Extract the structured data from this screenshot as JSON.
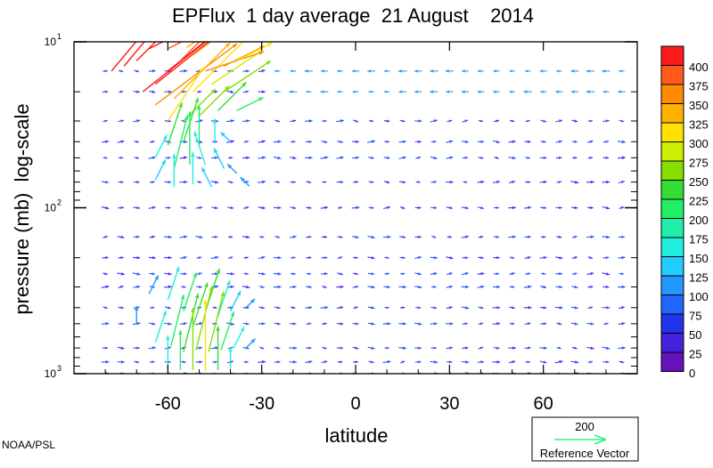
{
  "chart_data": {
    "type": "vector-field",
    "title": "EPFlux  1 day average  21 August    2014",
    "xlabel": "latitude",
    "ylabel": "pressure (mb)  log-scale",
    "x_ticks": [
      {
        "value": -60,
        "label": "-60"
      },
      {
        "value": -30,
        "label": "-30"
      },
      {
        "value": 0,
        "label": "0"
      },
      {
        "value": 30,
        "label": "30"
      },
      {
        "value": 60,
        "label": "60"
      }
    ],
    "y_ticks": [
      {
        "value": 10,
        "base": "10",
        "exp": "1"
      },
      {
        "value": 100,
        "base": "10",
        "exp": "2"
      },
      {
        "value": 1000,
        "base": "10",
        "exp": "3"
      }
    ],
    "xlim": [
      -90,
      90
    ],
    "ylim": [
      1000,
      10
    ],
    "y_scale": "log",
    "colorbar": {
      "labels": [
        "400",
        "375",
        "350",
        "325",
        "300",
        "275",
        "250",
        "225",
        "200",
        "175",
        "150",
        "125",
        "100",
        "75",
        "50",
        "25",
        "0"
      ],
      "colors": [
        "#ff1a1a",
        "#ff5a1a",
        "#ff8c00",
        "#ffb000",
        "#ffe000",
        "#ccee00",
        "#88dd00",
        "#33dd33",
        "#22ee66",
        "#22eeaa",
        "#22eedd",
        "#22ccff",
        "#2299ff",
        "#2266ff",
        "#2233ee",
        "#4422dd",
        "#6611bb"
      ]
    },
    "reference_vector": {
      "value": "200",
      "label": "Reference Vector"
    },
    "vectors": [
      {
        "lat": -78,
        "p": 15,
        "u": 5,
        "v": -6,
        "mag": 395
      },
      {
        "lat": -74,
        "p": 14,
        "u": 5,
        "v": -6,
        "mag": 400
      },
      {
        "lat": -70,
        "p": 13,
        "u": 5,
        "v": -5,
        "mag": 400
      },
      {
        "lat": -68,
        "p": 20,
        "u": 5,
        "v": -4,
        "mag": 400
      },
      {
        "lat": -64,
        "p": 18,
        "u": 5,
        "v": -4,
        "mag": 400
      },
      {
        "lat": -60,
        "p": 15,
        "u": 5,
        "v": -4,
        "mag": 400
      },
      {
        "lat": -56,
        "p": 13,
        "u": 4,
        "v": -4,
        "mag": 380
      },
      {
        "lat": -52,
        "p": 12,
        "u": 4,
        "v": -3,
        "mag": 360
      },
      {
        "lat": -66,
        "p": 11,
        "u": 4,
        "v": -2,
        "mag": 390
      },
      {
        "lat": -60,
        "p": 11,
        "u": 4,
        "v": -2,
        "mag": 370
      },
      {
        "lat": -54,
        "p": 10.8,
        "u": 3,
        "v": -2,
        "mag": 330
      },
      {
        "lat": -64,
        "p": 24,
        "u": 4,
        "v": -3,
        "mag": 360
      },
      {
        "lat": -58,
        "p": 22,
        "u": 3,
        "v": -3,
        "mag": 320
      },
      {
        "lat": -52,
        "p": 20,
        "u": 3,
        "v": -3,
        "mag": 300
      },
      {
        "lat": -46,
        "p": 18,
        "u": 3,
        "v": -2,
        "mag": 280
      },
      {
        "lat": -42,
        "p": 20,
        "u": 3,
        "v": -2,
        "mag": 250
      },
      {
        "lat": -48,
        "p": 15,
        "u": 3,
        "v": -1,
        "mag": 340
      },
      {
        "lat": -42,
        "p": 14,
        "u": 2,
        "v": -1,
        "mag": 350
      },
      {
        "lat": -38,
        "p": 13,
        "u": 2,
        "v": -1,
        "mag": 300
      },
      {
        "lat": -60,
        "p": 30,
        "u": 2,
        "v": -3,
        "mag": 300
      },
      {
        "lat": -55,
        "p": 30,
        "u": 2,
        "v": -2,
        "mag": 260
      },
      {
        "lat": -50,
        "p": 28,
        "u": 2,
        "v": -2,
        "mag": 240
      },
      {
        "lat": -44,
        "p": 26,
        "u": 2,
        "v": -2,
        "mag": 220
      },
      {
        "lat": -38,
        "p": 26,
        "u": 2,
        "v": -1,
        "mag": 200
      },
      {
        "lat": -60,
        "p": 42,
        "u": 1,
        "v": -3,
        "mag": 220
      },
      {
        "lat": -55,
        "p": 40,
        "u": 1,
        "v": -3,
        "mag": 230
      },
      {
        "lat": -50,
        "p": 42,
        "u": 0,
        "v": -3,
        "mag": 200
      },
      {
        "lat": -45,
        "p": 40,
        "u": 0,
        "v": -2,
        "mag": 160
      },
      {
        "lat": -40,
        "p": 40,
        "u": -1,
        "v": -1,
        "mag": 120
      },
      {
        "lat": -64,
        "p": 50,
        "u": 1,
        "v": -2,
        "mag": 160
      },
      {
        "lat": -58,
        "p": 58,
        "u": 1,
        "v": -4,
        "mag": 200
      },
      {
        "lat": -53,
        "p": 55,
        "u": 0,
        "v": -4,
        "mag": 200
      },
      {
        "lat": -48,
        "p": 55,
        "u": -1,
        "v": -3,
        "mag": 150
      },
      {
        "lat": -42,
        "p": 58,
        "u": -1,
        "v": -2,
        "mag": 130
      },
      {
        "lat": -64,
        "p": 68,
        "u": 1,
        "v": -2,
        "mag": 130
      },
      {
        "lat": -58,
        "p": 75,
        "u": 0,
        "v": -3,
        "mag": 150
      },
      {
        "lat": -52,
        "p": 72,
        "u": 0,
        "v": -3,
        "mag": 140
      },
      {
        "lat": -46,
        "p": 75,
        "u": -1,
        "v": -2,
        "mag": 120
      },
      {
        "lat": -38,
        "p": 62,
        "u": -1,
        "v": -1,
        "mag": 110
      },
      {
        "lat": -34,
        "p": 74,
        "u": -1,
        "v": -1,
        "mag": 100
      },
      {
        "lat": -66,
        "p": 330,
        "u": 1,
        "v": -2,
        "mag": 110
      },
      {
        "lat": -60,
        "p": 360,
        "u": 1,
        "v": -3,
        "mag": 150
      },
      {
        "lat": -55,
        "p": 420,
        "u": 1,
        "v": -3,
        "mag": 190
      },
      {
        "lat": -52,
        "p": 520,
        "u": 1,
        "v": -3,
        "mag": 230
      },
      {
        "lat": -48,
        "p": 420,
        "u": 1,
        "v": -3,
        "mag": 220
      },
      {
        "lat": -44,
        "p": 450,
        "u": 1,
        "v": -3,
        "mag": 170
      },
      {
        "lat": -40,
        "p": 420,
        "u": 1,
        "v": -2,
        "mag": 130
      },
      {
        "lat": -35,
        "p": 400,
        "u": 1,
        "v": -1,
        "mag": 100
      },
      {
        "lat": -70,
        "p": 500,
        "u": 0,
        "v": -2,
        "mag": 100
      },
      {
        "lat": -64,
        "p": 650,
        "u": 1,
        "v": -3,
        "mag": 140
      },
      {
        "lat": -59,
        "p": 680,
        "u": 1,
        "v": -4,
        "mag": 190
      },
      {
        "lat": -55,
        "p": 740,
        "u": 1,
        "v": -4,
        "mag": 230
      },
      {
        "lat": -51,
        "p": 720,
        "u": 1,
        "v": -4,
        "mag": 260
      },
      {
        "lat": -47,
        "p": 740,
        "u": 1,
        "v": -4,
        "mag": 240
      },
      {
        "lat": -43,
        "p": 720,
        "u": 1,
        "v": -3,
        "mag": 190
      },
      {
        "lat": -39,
        "p": 700,
        "u": 1,
        "v": -2,
        "mag": 140
      },
      {
        "lat": -35,
        "p": 700,
        "u": 1,
        "v": -1,
        "mag": 110
      },
      {
        "lat": -60,
        "p": 950,
        "u": 0,
        "v": -3,
        "mag": 160
      },
      {
        "lat": -56,
        "p": 950,
        "u": 0,
        "v": -3,
        "mag": 200
      },
      {
        "lat": -52,
        "p": 950,
        "u": 0,
        "v": -4,
        "mag": 250
      },
      {
        "lat": -48,
        "p": 960,
        "u": 0,
        "v": -4,
        "mag": 300
      },
      {
        "lat": -44,
        "p": 950,
        "u": 0,
        "v": -3,
        "mag": 230
      },
      {
        "lat": -40,
        "p": 940,
        "u": 0,
        "v": -2,
        "mag": 150
      }
    ],
    "grid": "off"
  },
  "footer": {
    "credit": "NOAA/PSL"
  }
}
